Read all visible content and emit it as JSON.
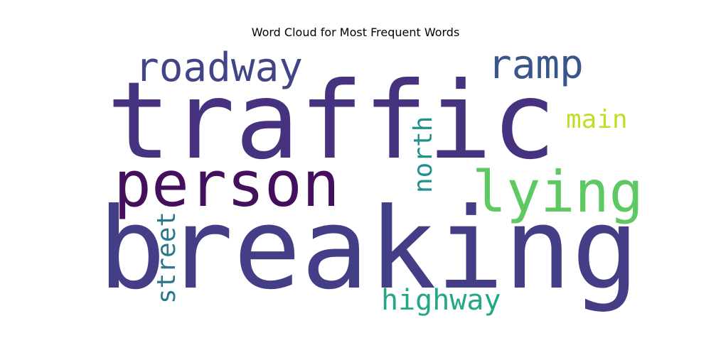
{
  "chart_data": {
    "type": "wordcloud",
    "title": "Word Cloud for Most Frequent Words",
    "background": "#ffffff",
    "colormap": "viridis",
    "words": [
      {
        "text": "breaking",
        "weight": 1.0,
        "color": "#433e85",
        "orientation": "horizontal"
      },
      {
        "text": "traffic",
        "weight": 0.96,
        "color": "#46327e",
        "orientation": "horizontal"
      },
      {
        "text": "person",
        "weight": 0.56,
        "color": "#440f5d",
        "orientation": "horizontal"
      },
      {
        "text": "roadway",
        "weight": 0.33,
        "color": "#414487",
        "orientation": "horizontal"
      },
      {
        "text": "ramp",
        "weight": 0.33,
        "color": "#39568c",
        "orientation": "horizontal"
      },
      {
        "text": "lying",
        "weight": 0.48,
        "color": "#5ec962",
        "orientation": "horizontal"
      },
      {
        "text": "main",
        "weight": 0.2,
        "color": "#bddf26",
        "orientation": "horizontal"
      },
      {
        "text": "north",
        "weight": 0.22,
        "color": "#21918c",
        "orientation": "vertical"
      },
      {
        "text": "street",
        "weight": 0.22,
        "color": "#2a788e",
        "orientation": "vertical"
      },
      {
        "text": "highway",
        "weight": 0.22,
        "color": "#22a884",
        "orientation": "horizontal"
      }
    ]
  }
}
